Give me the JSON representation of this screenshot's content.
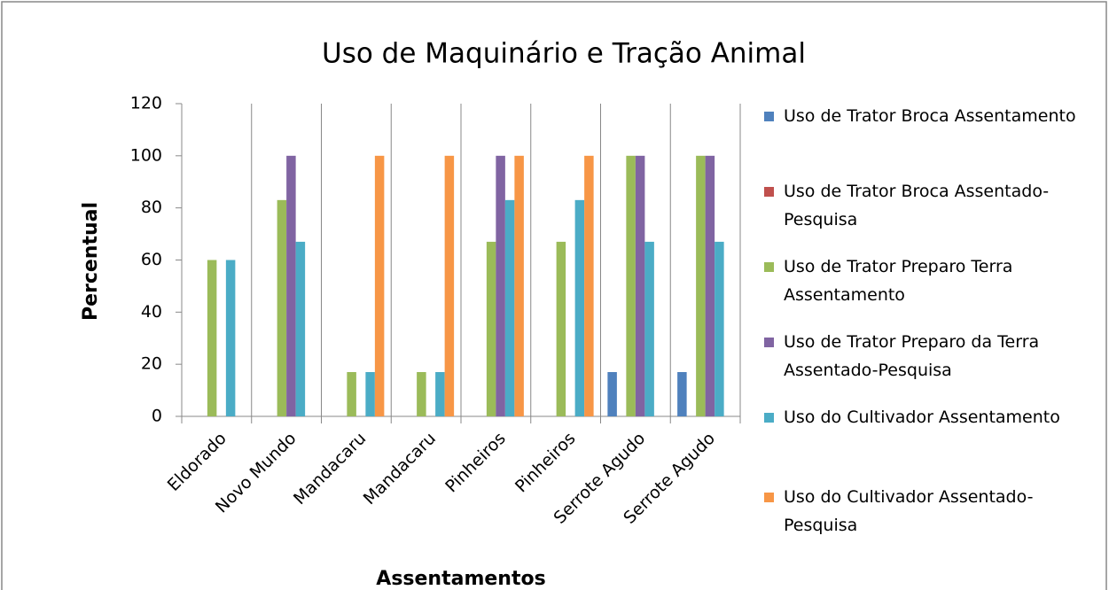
{
  "chart_data": {
    "type": "bar",
    "title": "Uso de Maquinário e Tração Animal",
    "x_label": "Assentamentos",
    "y_label": "Percentual",
    "categories": [
      "Eldorado",
      "Novo Mundo",
      "Mandacaru",
      "Mandacaru",
      "Pinheiros",
      "Pinheiros",
      "Serrote Agudo",
      "Serrote Agudo"
    ],
    "series": [
      {
        "name": "Uso de Trator Broca Assentamento",
        "color": "#4f81bd",
        "values": [
          0,
          0,
          0,
          0,
          0,
          0,
          17,
          17
        ]
      },
      {
        "name": "Uso de Trator Broca Assentado-Pesquisa",
        "color": "#c0504d",
        "values": [
          0,
          0,
          0,
          0,
          0,
          0,
          0,
          0
        ]
      },
      {
        "name": "Uso de Trator Preparo Terra Assentamento",
        "color": "#9bbb59",
        "values": [
          60,
          83,
          17,
          17,
          67,
          67,
          100,
          100
        ]
      },
      {
        "name": "Uso de Trator Preparo da Terra Assentado-Pesquisa",
        "color": "#8064a2",
        "values": [
          0,
          100,
          0,
          0,
          100,
          0,
          100,
          100
        ]
      },
      {
        "name": "Uso do Cultivador Assentamento",
        "color": "#4bacc6",
        "values": [
          60,
          67,
          17,
          17,
          83,
          83,
          67,
          67
        ]
      },
      {
        "name": "Uso do Cultivador Assentado-Pesquisa",
        "color": "#f79646",
        "values": [
          0,
          0,
          100,
          100,
          100,
          100,
          0,
          0
        ]
      }
    ],
    "ylim": [
      0,
      120
    ],
    "yticks": [
      0,
      20,
      40,
      60,
      80,
      100,
      120
    ],
    "legend": "right"
  }
}
